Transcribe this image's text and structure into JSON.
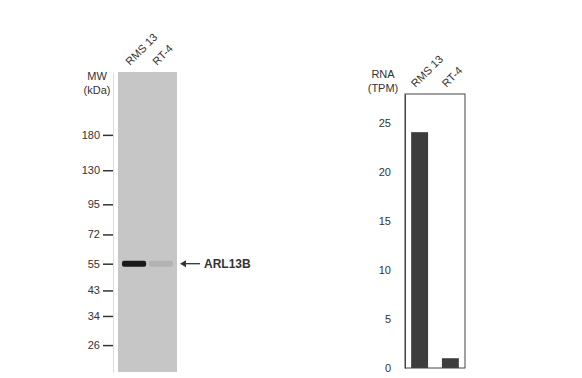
{
  "chart_data": [
    {
      "type": "blot",
      "categories": [
        "RMS 13",
        "RT-4"
      ],
      "values": [
        55,
        55
      ],
      "colors": [
        "#1a1a1a",
        "#b3b3b3"
      ],
      "ylabel": [
        "MW",
        "(kDa)"
      ],
      "ylim": [
        20.3,
        321
      ],
      "yticks": [
        180,
        130,
        95,
        72,
        55,
        43,
        34,
        26
      ],
      "log": "y",
      "annotations": [
        {
          "text": "ARL13B",
          "y": 55
        }
      ]
    },
    {
      "type": "bar",
      "categories": [
        "RMS 13",
        "RT-4"
      ],
      "values": [
        24.1,
        1.0
      ],
      "color": "#3d3d3d",
      "ylabel": [
        "RNA",
        "(TPM)"
      ],
      "ylim": [
        0,
        28
      ],
      "yticks": [
        0,
        5,
        10,
        15,
        20,
        25
      ]
    }
  ]
}
